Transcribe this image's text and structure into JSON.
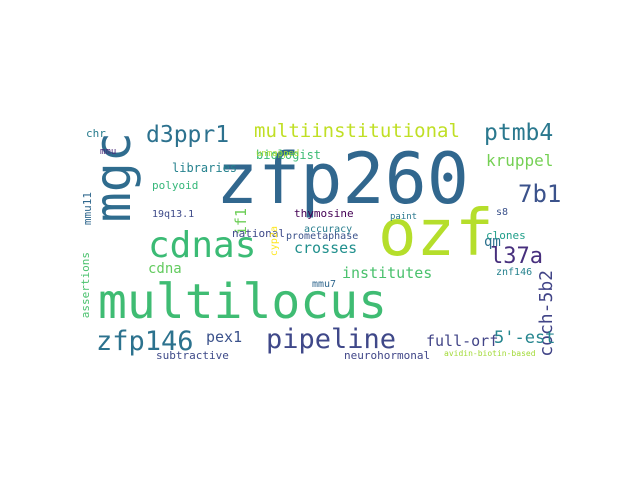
{
  "words": [
    {
      "text": "zfp260",
      "color": "#31678e"
    },
    {
      "text": "multilocus",
      "color": "#3fbc73"
    },
    {
      "text": "mgc",
      "color": "#2f6c8e"
    },
    {
      "text": "ozf",
      "color": "#b5de2b"
    },
    {
      "text": "cdnas",
      "color": "#3bbb75"
    },
    {
      "text": "zfp146",
      "color": "#2c728e"
    },
    {
      "text": "pipeline",
      "color": "#3f4889"
    },
    {
      "text": "d3ppr1",
      "color": "#2c718e"
    },
    {
      "text": "multiinstitutional",
      "color": "#c0df25"
    },
    {
      "text": "ptmb4",
      "color": "#2a788e"
    },
    {
      "text": "l37a",
      "color": "#472f7d"
    },
    {
      "text": "7b1",
      "color": "#3b528b"
    },
    {
      "text": "coch-5b2",
      "color": "#414487"
    },
    {
      "text": "kruppel",
      "color": "#75d054"
    },
    {
      "text": "crosses",
      "color": "#21908d"
    },
    {
      "text": "institutes",
      "color": "#4ac16d"
    },
    {
      "text": "full-orf",
      "color": "#414487"
    },
    {
      "text": "5'-est",
      "color": "#25858e"
    },
    {
      "text": "pex1",
      "color": "#3b528b"
    },
    {
      "text": "cdna",
      "color": "#63cb5f"
    },
    {
      "text": "qm",
      "color": "#2c718e"
    },
    {
      "text": "if1",
      "color": "#6ece58"
    },
    {
      "text": "libraries",
      "color": "#26828e"
    },
    {
      "text": "biologist",
      "color": "#3dbc74"
    },
    {
      "text": "polyoid",
      "color": "#35b779"
    },
    {
      "text": "thymosine",
      "color": "#440154"
    },
    {
      "text": "accuracy",
      "color": "#287d8e"
    },
    {
      "text": "clones",
      "color": "#1f9e89"
    },
    {
      "text": "assertions",
      "color": "#4ac16d"
    },
    {
      "text": "subtractive",
      "color": "#3e4a89"
    },
    {
      "text": "neurohormonal",
      "color": "#404688"
    },
    {
      "text": "avidin-biotin-based",
      "color": "#a2da37"
    },
    {
      "text": "19q13.1",
      "color": "#3e4a89"
    },
    {
      "text": "mmu11",
      "color": "#31688e"
    },
    {
      "text": "mmu7",
      "color": "#31688e"
    },
    {
      "text": "unmapped",
      "color": "#a5db36"
    },
    {
      "text": "national",
      "color": "#3e4989"
    },
    {
      "text": "chr",
      "color": "#287c8e"
    },
    {
      "text": "cyp2a",
      "color": "#fde725"
    },
    {
      "text": "prometaphase",
      "color": "#3b528b"
    },
    {
      "text": "znf146",
      "color": "#26828e"
    },
    {
      "text": "paint",
      "color": "#2a788e"
    },
    {
      "text": "s8",
      "color": "#3b528b"
    },
    {
      "text": "mmu",
      "color": "#482878"
    }
  ]
}
